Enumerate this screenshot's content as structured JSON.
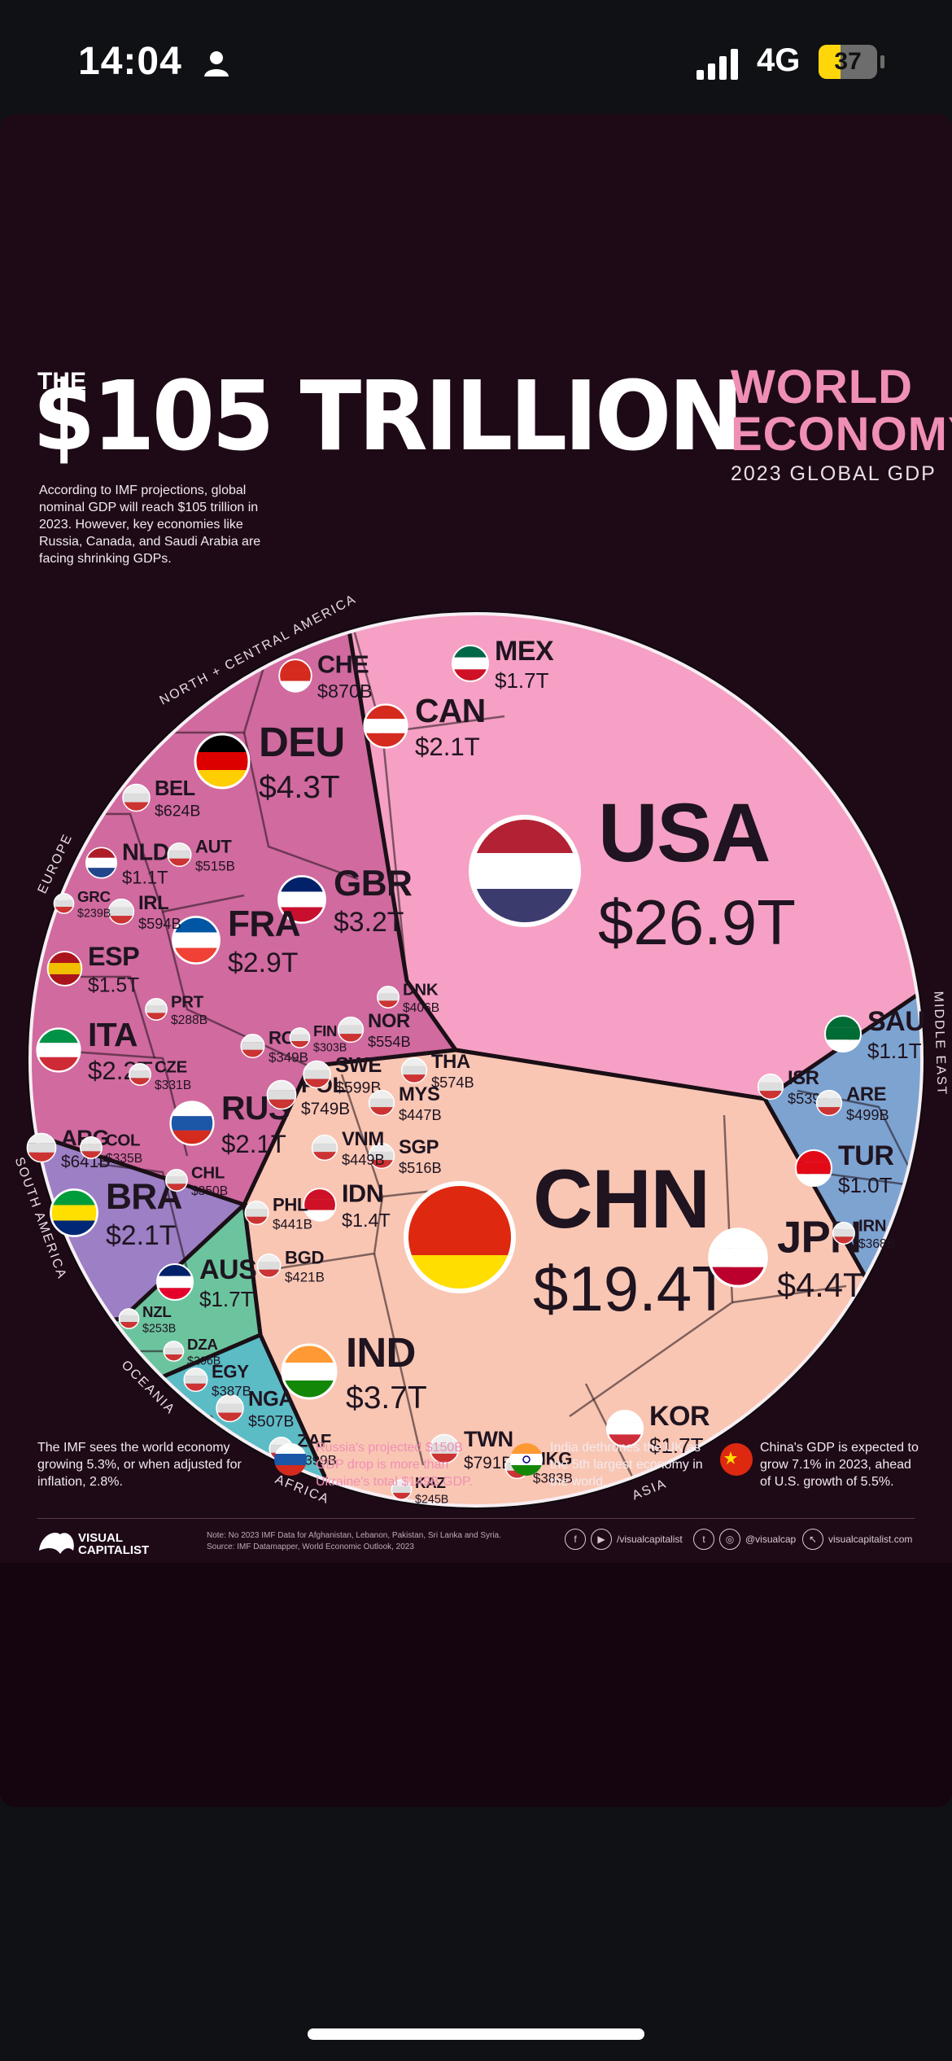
{
  "status_bar": {
    "time": "14:04",
    "network": "4G",
    "battery_percent": 37,
    "battery_label": "37"
  },
  "poster": {
    "the": "THE",
    "title": "$105 TRILLION",
    "subtitle_line1": "WORLD",
    "subtitle_line2": "ECONOMY",
    "subtitle_line3": "2023 GLOBAL GDP",
    "intro": "According to IMF projections, global nominal GDP will reach $105 trillion in 2023. However, key economies like Russia, Canada, and Saudi Arabia are facing shrinking GDPs.",
    "footer": [
      "The IMF sees the world economy growing 5.3%, or when adjusted for inflation, 2.8%.",
      "Russia's projected $150B GDP drop is more than Ukraine's total $149B GDP.",
      "India dethrones the UK as the 5th largest economy in the world.",
      "China's GDP is expected to grow 7.1% in 2023, ahead of U.S. growth of 5.5%."
    ],
    "note_line1": "Note: No 2023 IMF Data for Afghanistan, Lebanon, Pakistan, Sri Lanka and Syria.",
    "note_line2": "Source: IMF Datamapper, World Economic Outlook, 2023",
    "logo_line1": "VISUAL",
    "logo_line2": "CAPITALIST",
    "social_handle1": "/visualcapitalist",
    "social_handle2": "@visualcap",
    "website": "visualcapitalist.com"
  },
  "colors": {
    "background": "#1e0a17",
    "north_central_america": "#f5a0c4",
    "europe": "#d06a9f",
    "asia": "#f9c6b3",
    "middle_east": "#7da3d1",
    "south_america": "#9c7fc4",
    "oceania": "#6cc49e",
    "africa": "#5bbcc6",
    "accent": "#f08fb5"
  },
  "chart_data": {
    "type": "voronoi",
    "title": "$105 TRILLION WORLD ECONOMY",
    "subtitle": "2023 GLOBAL GDP",
    "unit": "USD",
    "total": "$105 trillion",
    "regions": [
      {
        "name": "NORTH + CENTRAL AMERICA",
        "countries": [
          {
            "code": "USA",
            "label": "$26.9T",
            "value_billion": 26900
          },
          {
            "code": "CAN",
            "label": "$2.1T",
            "value_billion": 2100
          },
          {
            "code": "MEX",
            "label": "$1.7T",
            "value_billion": 1700
          }
        ]
      },
      {
        "name": "EUROPE",
        "countries": [
          {
            "code": "DEU",
            "label": "$4.3T",
            "value_billion": 4300
          },
          {
            "code": "GBR",
            "label": "$3.2T",
            "value_billion": 3200
          },
          {
            "code": "FRA",
            "label": "$2.9T",
            "value_billion": 2900
          },
          {
            "code": "ITA",
            "label": "$2.2T",
            "value_billion": 2200
          },
          {
            "code": "RUS",
            "label": "$2.1T",
            "value_billion": 2100
          },
          {
            "code": "ESP",
            "label": "$1.5T",
            "value_billion": 1500
          },
          {
            "code": "NLD",
            "label": "$1.1T",
            "value_billion": 1100
          },
          {
            "code": "CHE",
            "label": "$870B",
            "value_billion": 870
          },
          {
            "code": "POL",
            "label": "$749B",
            "value_billion": 749
          },
          {
            "code": "BEL",
            "label": "$624B",
            "value_billion": 624
          },
          {
            "code": "SWE",
            "label": "$599B",
            "value_billion": 599
          },
          {
            "code": "IRL",
            "label": "$594B",
            "value_billion": 594
          },
          {
            "code": "NOR",
            "label": "$554B",
            "value_billion": 554
          },
          {
            "code": "AUT",
            "label": "$515B",
            "value_billion": 515
          },
          {
            "code": "DNK",
            "label": "$406B",
            "value_billion": 406
          },
          {
            "code": "ROU",
            "label": "$349B",
            "value_billion": 349
          },
          {
            "code": "CZE",
            "label": "$331B",
            "value_billion": 331
          },
          {
            "code": "FIN",
            "label": "$303B",
            "value_billion": 303
          },
          {
            "code": "PRT",
            "label": "$288B",
            "value_billion": 288
          },
          {
            "code": "GRC",
            "label": "$239B",
            "value_billion": 239
          }
        ]
      },
      {
        "name": "ASIA",
        "countries": [
          {
            "code": "CHN",
            "label": "$19.4T",
            "value_billion": 19400
          },
          {
            "code": "JPN",
            "label": "$4.4T",
            "value_billion": 4400
          },
          {
            "code": "IND",
            "label": "$3.7T",
            "value_billion": 3700
          },
          {
            "code": "KOR",
            "label": "$1.7T",
            "value_billion": 1700
          },
          {
            "code": "IDN",
            "label": "$1.4T",
            "value_billion": 1400
          },
          {
            "code": "TWN",
            "label": "$791B",
            "value_billion": 791
          },
          {
            "code": "THA",
            "label": "$574B",
            "value_billion": 574
          },
          {
            "code": "SGP",
            "label": "$516B",
            "value_billion": 516
          },
          {
            "code": "VNM",
            "label": "$449B",
            "value_billion": 449
          },
          {
            "code": "MYS",
            "label": "$447B",
            "value_billion": 447
          },
          {
            "code": "PHL",
            "label": "$441B",
            "value_billion": 441
          },
          {
            "code": "BGD",
            "label": "$421B",
            "value_billion": 421
          },
          {
            "code": "HKG",
            "label": "$383B",
            "value_billion": 383
          },
          {
            "code": "KAZ",
            "label": "$245B",
            "value_billion": 245
          }
        ]
      },
      {
        "name": "MIDDLE EAST",
        "countries": [
          {
            "code": "SAU",
            "label": "$1.1T",
            "value_billion": 1100
          },
          {
            "code": "TUR",
            "label": "$1.0T",
            "value_billion": 1000
          },
          {
            "code": "ISR",
            "label": "$539B",
            "value_billion": 539
          },
          {
            "code": "ARE",
            "label": "$499B",
            "value_billion": 499
          },
          {
            "code": "IRN",
            "label": "$368B",
            "value_billion": 368
          }
        ]
      },
      {
        "name": "SOUTH AMERICA",
        "countries": [
          {
            "code": "BRA",
            "label": "$2.1T",
            "value_billion": 2100
          },
          {
            "code": "ARG",
            "label": "$641B",
            "value_billion": 641
          },
          {
            "code": "COL",
            "label": "$335B",
            "value_billion": 335
          },
          {
            "code": "CHL",
            "label": "$350B",
            "value_billion": 350
          }
        ]
      },
      {
        "name": "OCEANIA",
        "countries": [
          {
            "code": "AUS",
            "label": "$1.7T",
            "value_billion": 1700
          },
          {
            "code": "NZL",
            "label": "$253B",
            "value_billion": 253
          }
        ]
      },
      {
        "name": "AFRICA",
        "countries": [
          {
            "code": "NGA",
            "label": "$507B",
            "value_billion": 507
          },
          {
            "code": "EGY",
            "label": "$387B",
            "value_billion": 387
          },
          {
            "code": "ZAF",
            "label": "$399B",
            "value_billion": 399
          },
          {
            "code": "DZA",
            "label": "$206B",
            "value_billion": 206
          }
        ]
      }
    ]
  }
}
